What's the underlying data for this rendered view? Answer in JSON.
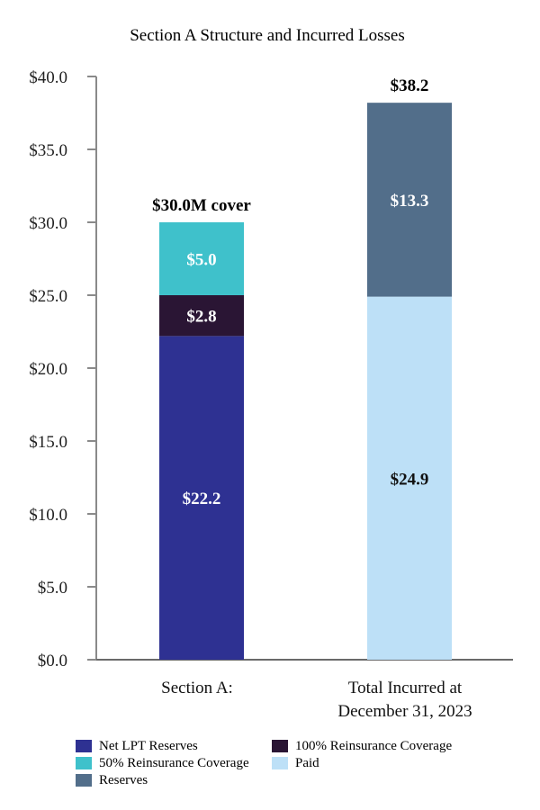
{
  "chart_data": {
    "type": "bar",
    "stacked": true,
    "title": "Section A  Structure and Incurred Losses",
    "xlabel": "",
    "ylabel": "",
    "ylim": [
      0,
      40
    ],
    "y_ticks": [
      "$0.0",
      "$5.0",
      "$10.0",
      "$15.0",
      "$20.0",
      "$25.0",
      "$30.0",
      "$35.0",
      "$40.0"
    ],
    "y_tick_values": [
      0,
      5,
      10,
      15,
      20,
      25,
      30,
      35,
      40
    ],
    "categories": [
      "Section A:",
      "Total Incurred at December 31, 2023"
    ],
    "category_lines": [
      [
        "Section A:"
      ],
      [
        "Total Incurred at",
        "December 31, 2023"
      ]
    ],
    "series": [
      {
        "name": "Net LPT Reserves",
        "values": [
          22.2,
          null
        ],
        "labels": [
          "$22.2",
          null
        ],
        "color": "#2e3192",
        "label_color": "#ffffff"
      },
      {
        "name": "100% Reinsurance Coverage",
        "values": [
          2.8,
          null
        ],
        "labels": [
          "$2.8",
          null
        ],
        "color": "#2a1534",
        "label_color": "#ffffff"
      },
      {
        "name": "50% Reinsurance Coverage",
        "values": [
          5.0,
          null
        ],
        "labels": [
          "$5.0",
          null
        ],
        "color": "#3fc1cb",
        "label_color": "#ffffff"
      },
      {
        "name": "Paid",
        "values": [
          null,
          24.9
        ],
        "labels": [
          null,
          "$24.9"
        ],
        "color": "#bde0f7",
        "label_color": "#111111"
      },
      {
        "name": "Reserves",
        "values": [
          null,
          13.3
        ],
        "labels": [
          null,
          "$13.3"
        ],
        "color": "#526e8a",
        "label_color": "#ffffff"
      }
    ],
    "totals": [
      {
        "value": 30.0,
        "label": "$30.0M cover"
      },
      {
        "value": 38.2,
        "label": "$38.2"
      }
    ],
    "legend": [
      {
        "name": "Net LPT Reserves",
        "color": "#2e3192"
      },
      {
        "name": "100% Reinsurance Coverage",
        "color": "#2a1534"
      },
      {
        "name": "50% Reinsurance Coverage",
        "color": "#3fc1cb"
      },
      {
        "name": "Paid",
        "color": "#bde0f7"
      },
      {
        "name": "Reserves",
        "color": "#526e8a"
      }
    ],
    "legend_position": "bottom",
    "grid": false
  }
}
